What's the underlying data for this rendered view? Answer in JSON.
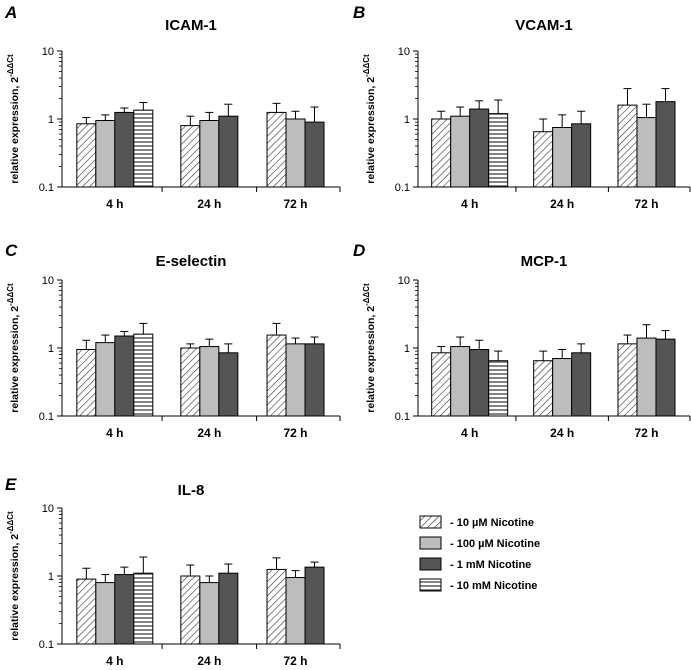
{
  "figure": {
    "ylabel": "relative expression, 2",
    "ylabel_sup": "-ΔΔCt",
    "legend": [
      "- 10 µM Nicotine",
      "- 100 µM Nicotine",
      "- 1 mM Nicotine",
      "- 10 mM Nicotine"
    ],
    "series_styles": [
      {
        "fill": "hatch-diag",
        "color": "#ffffff"
      },
      {
        "fill": "solid",
        "color": "#bdbdbd"
      },
      {
        "fill": "solid",
        "color": "#555555"
      },
      {
        "fill": "hatch-horiz",
        "color": "#ffffff"
      }
    ]
  },
  "chart_data": [
    {
      "panel": "A",
      "title": "ICAM-1",
      "type": "bar",
      "yscale": "log",
      "ylim": [
        0.1,
        10
      ],
      "yticks": [
        "10",
        "1",
        "0.1"
      ],
      "categories": [
        "4 h",
        "24 h",
        "72 h"
      ],
      "series": [
        {
          "name": "- 10 µM Nicotine",
          "values": [
            0.85,
            0.8,
            1.25
          ],
          "err": [
            1.05,
            1.1,
            1.7
          ]
        },
        {
          "name": "- 100 µM Nicotine",
          "values": [
            0.95,
            0.95,
            1.0
          ],
          "err": [
            1.15,
            1.25,
            1.3
          ]
        },
        {
          "name": "- 1 mM Nicotine",
          "values": [
            1.25,
            1.1,
            0.9
          ],
          "err": [
            1.45,
            1.65,
            1.5
          ]
        },
        {
          "name": "- 10 mM Nicotine",
          "values": [
            1.35,
            null,
            null
          ],
          "err": [
            1.75,
            null,
            null
          ]
        }
      ]
    },
    {
      "panel": "B",
      "title": "VCAM-1",
      "type": "bar",
      "yscale": "log",
      "ylim": [
        0.1,
        10
      ],
      "yticks": [
        "10",
        "1",
        "0.1"
      ],
      "categories": [
        "4 h",
        "24 h",
        "72 h"
      ],
      "series": [
        {
          "name": "- 10 µM Nicotine",
          "values": [
            1.0,
            0.65,
            1.6
          ],
          "err": [
            1.3,
            1.0,
            2.8
          ]
        },
        {
          "name": "- 100 µM Nicotine",
          "values": [
            1.1,
            0.75,
            1.05
          ],
          "err": [
            1.5,
            1.15,
            1.65
          ]
        },
        {
          "name": "- 1 mM Nicotine",
          "values": [
            1.4,
            0.85,
            1.8
          ],
          "err": [
            1.85,
            1.3,
            2.8
          ]
        },
        {
          "name": "- 10 mM Nicotine",
          "values": [
            1.2,
            null,
            null
          ],
          "err": [
            1.9,
            null,
            null
          ]
        }
      ]
    },
    {
      "panel": "C",
      "title": "E-selectin",
      "type": "bar",
      "yscale": "log",
      "ylim": [
        0.1,
        10
      ],
      "yticks": [
        "10",
        "1",
        "0.1"
      ],
      "categories": [
        "4 h",
        "24 h",
        "72 h"
      ],
      "series": [
        {
          "name": "- 10 µM Nicotine",
          "values": [
            0.95,
            1.0,
            1.55
          ],
          "err": [
            1.3,
            1.15,
            2.3
          ]
        },
        {
          "name": "- 100 µM Nicotine",
          "values": [
            1.2,
            1.05,
            1.15
          ],
          "err": [
            1.55,
            1.35,
            1.4
          ]
        },
        {
          "name": "- 1 mM Nicotine",
          "values": [
            1.5,
            0.85,
            1.15
          ],
          "err": [
            1.75,
            1.15,
            1.45
          ]
        },
        {
          "name": "- 10 mM Nicotine",
          "values": [
            1.6,
            null,
            null
          ],
          "err": [
            2.3,
            null,
            null
          ]
        }
      ]
    },
    {
      "panel": "D",
      "title": "MCP-1",
      "type": "bar",
      "yscale": "log",
      "ylim": [
        0.1,
        10
      ],
      "yticks": [
        "10",
        "1",
        "0.1"
      ],
      "categories": [
        "4 h",
        "24 h",
        "72 h"
      ],
      "series": [
        {
          "name": "- 10 µM Nicotine",
          "values": [
            0.85,
            0.65,
            1.15
          ],
          "err": [
            1.05,
            0.9,
            1.55
          ]
        },
        {
          "name": "- 100 µM Nicotine",
          "values": [
            1.05,
            0.7,
            1.4
          ],
          "err": [
            1.45,
            0.95,
            2.2
          ]
        },
        {
          "name": "- 1 mM Nicotine",
          "values": [
            0.95,
            0.85,
            1.35
          ],
          "err": [
            1.3,
            1.15,
            1.8
          ]
        },
        {
          "name": "- 10 mM Nicotine",
          "values": [
            0.65,
            null,
            null
          ],
          "err": [
            0.9,
            null,
            null
          ]
        }
      ]
    },
    {
      "panel": "E",
      "title": "IL-8",
      "type": "bar",
      "yscale": "log",
      "ylim": [
        0.1,
        10
      ],
      "yticks": [
        "10",
        "1",
        "0.1"
      ],
      "categories": [
        "4 h",
        "24 h",
        "72 h"
      ],
      "series": [
        {
          "name": "- 10 µM Nicotine",
          "values": [
            0.9,
            1.0,
            1.25
          ],
          "err": [
            1.3,
            1.45,
            1.85
          ]
        },
        {
          "name": "- 100 µM Nicotine",
          "values": [
            0.8,
            0.8,
            0.95
          ],
          "err": [
            1.05,
            1.0,
            1.2
          ]
        },
        {
          "name": "- 1 mM Nicotine",
          "values": [
            1.05,
            1.1,
            1.35
          ],
          "err": [
            1.35,
            1.5,
            1.6
          ]
        },
        {
          "name": "- 10 mM Nicotine",
          "values": [
            1.1,
            null,
            null
          ],
          "err": [
            1.9,
            null,
            null
          ]
        }
      ]
    }
  ]
}
